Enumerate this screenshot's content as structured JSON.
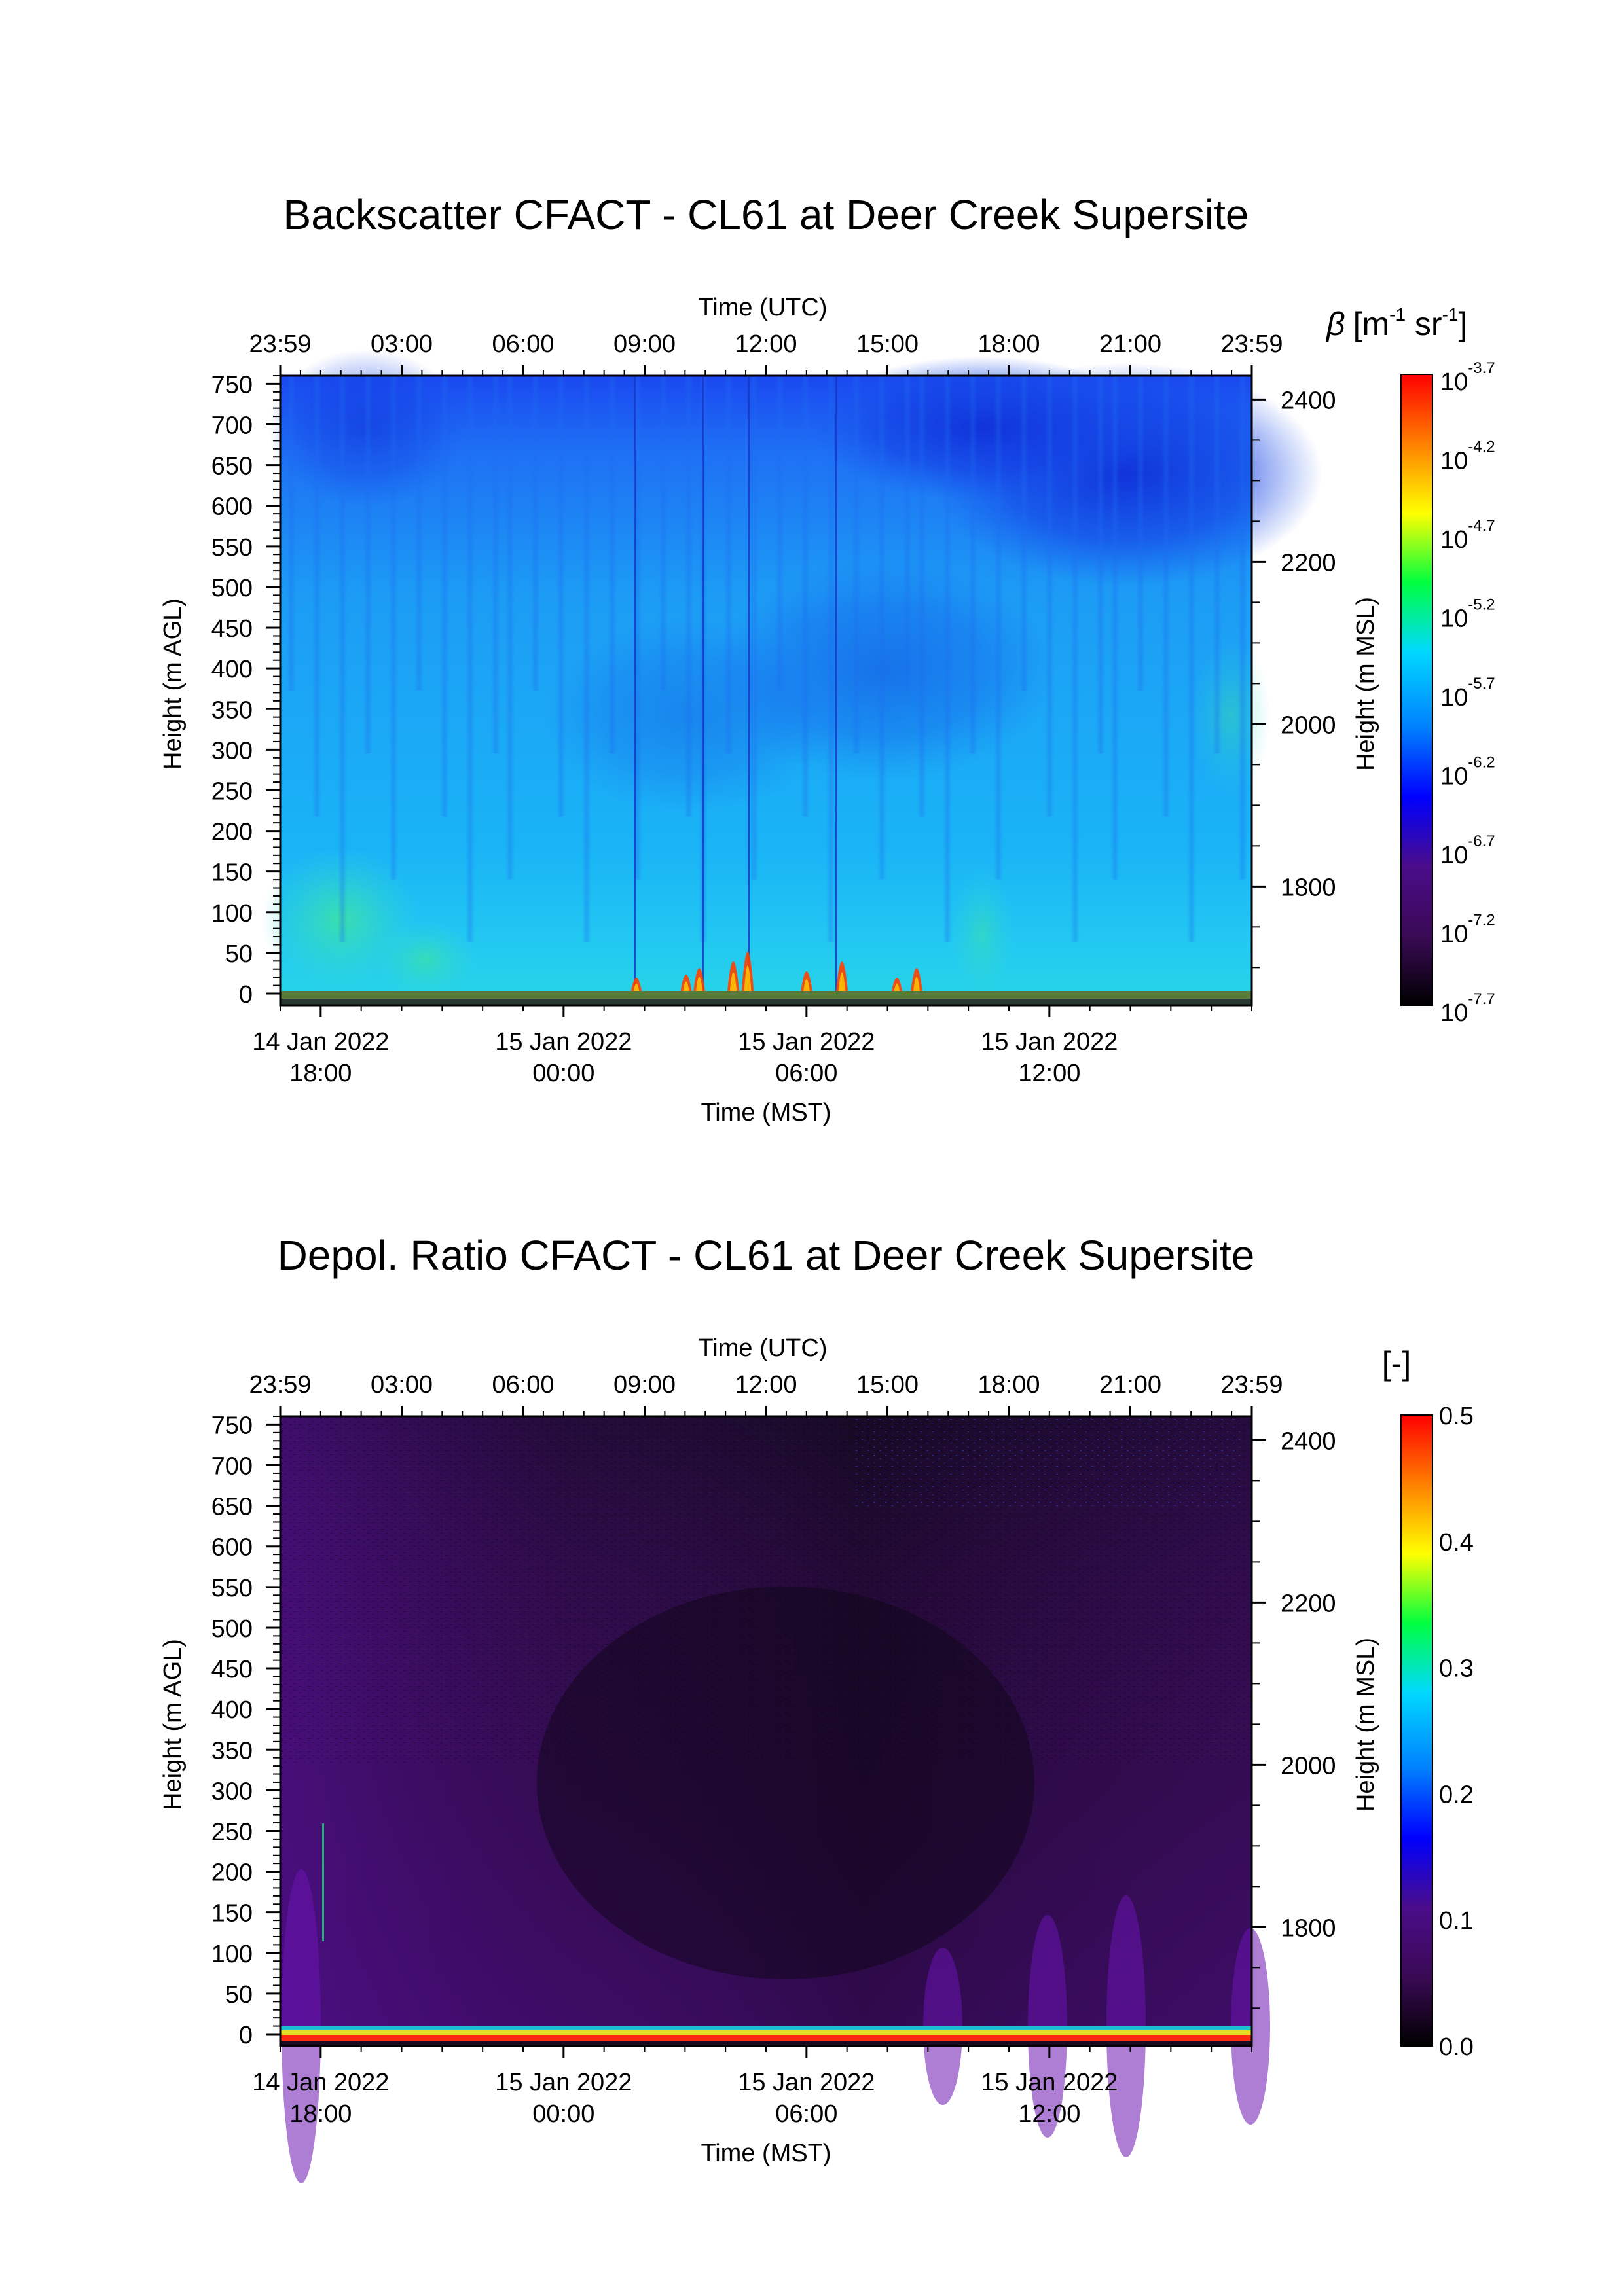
{
  "chart_data": [
    {
      "type": "heatmap",
      "title": "Backscatter CFACT - CL61 at Deer Creek Supersite",
      "xlabel_top": "Time (UTC)",
      "xlabel_bottom": "Time (MST)",
      "ylabel_left": "Height (m AGL)",
      "ylabel_right": "Height (m MSL)",
      "x_top_ticks": [
        "23:59",
        "03:00",
        "06:00",
        "09:00",
        "12:00",
        "15:00",
        "18:00",
        "21:00",
        "23:59"
      ],
      "x_bottom_ticks": [
        {
          "date": "14 Jan 2022",
          "time": "18:00"
        },
        {
          "date": "15 Jan 2022",
          "time": "00:00"
        },
        {
          "date": "15 Jan 2022",
          "time": "06:00"
        },
        {
          "date": "15 Jan 2022",
          "time": "12:00"
        }
      ],
      "y_left_ticks": [
        0,
        50,
        100,
        150,
        200,
        250,
        300,
        350,
        400,
        450,
        500,
        550,
        600,
        650,
        700,
        750
      ],
      "y_right_ticks": [
        1800,
        2000,
        2200,
        2400
      ],
      "ylim_agl": [
        0,
        760
      ],
      "colorbar": {
        "label": "β [m-1 sr-1]",
        "label_symbol": "β",
        "label_unit_open": "[m",
        "label_unit_exp1": "-1",
        "label_unit_mid": " sr",
        "label_unit_exp2": "-1",
        "label_unit_close": "]",
        "scale": "log",
        "tick_base": "10",
        "tick_exponents": [
          "-3.7",
          "-4.2",
          "-4.7",
          "-5.2",
          "-5.7",
          "-6.2",
          "-6.7",
          "-7.2",
          "-7.7"
        ],
        "range_log10": [
          -7.7,
          -3.7
        ],
        "colormap": "rainbow-black-purple-blue-cyan-green-yellow-red"
      },
      "description_values": {
        "dominant_field_log10": -6.2,
        "upper_right_region_log10": -6.7,
        "near_ground_log10": -5.2
      }
    },
    {
      "type": "heatmap",
      "title": "Depol. Ratio CFACT - CL61 at Deer Creek Supersite",
      "xlabel_top": "Time (UTC)",
      "xlabel_bottom": "Time (MST)",
      "ylabel_left": "Height (m AGL)",
      "ylabel_right": "Height (m MSL)",
      "x_top_ticks": [
        "23:59",
        "03:00",
        "06:00",
        "09:00",
        "12:00",
        "15:00",
        "18:00",
        "21:00",
        "23:59"
      ],
      "x_bottom_ticks": [
        {
          "date": "14 Jan 2022",
          "time": "18:00"
        },
        {
          "date": "15 Jan 2022",
          "time": "00:00"
        },
        {
          "date": "15 Jan 2022",
          "time": "06:00"
        },
        {
          "date": "15 Jan 2022",
          "time": "12:00"
        }
      ],
      "y_left_ticks": [
        0,
        50,
        100,
        150,
        200,
        250,
        300,
        350,
        400,
        450,
        500,
        550,
        600,
        650,
        700,
        750
      ],
      "y_right_ticks": [
        1800,
        2000,
        2200,
        2400
      ],
      "ylim_agl": [
        0,
        760
      ],
      "colorbar": {
        "label": "[-]",
        "scale": "linear",
        "ticks": [
          "0.5",
          "0.4",
          "0.3",
          "0.2",
          "0.1",
          "0.0"
        ],
        "range": [
          0,
          0.5
        ],
        "colormap": "rainbow-black-purple-blue-cyan-green-yellow-red"
      },
      "description_values": {
        "dominant_field": 0.05,
        "near_ground_band": 0.45
      }
    }
  ],
  "colors": {
    "cmap_stops": [
      "#000000",
      "#3a0a55",
      "#4a0c8a",
      "#0000ff",
      "#0080ff",
      "#00d8ff",
      "#00ff40",
      "#ffff00",
      "#ff8000",
      "#ff0000"
    ]
  }
}
